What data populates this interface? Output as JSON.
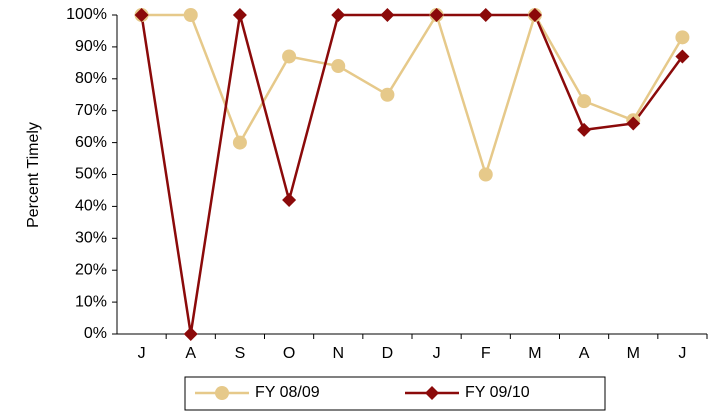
{
  "chart_data": {
    "type": "line",
    "y_label": "Percent Timely",
    "categories": [
      "J",
      "A",
      "S",
      "O",
      "N",
      "D",
      "J",
      "F",
      "M",
      "A",
      "M",
      "J"
    ],
    "series": [
      {
        "name": "FY 08/09",
        "color": "#e6c98a",
        "marker": "circle",
        "values": [
          100,
          100,
          60,
          87,
          84,
          75,
          100,
          50,
          100,
          73,
          67,
          93
        ]
      },
      {
        "name": "FY 09/10",
        "color": "#8b0a0a",
        "marker": "diamond",
        "values": [
          100,
          0,
          100,
          42,
          100,
          100,
          100,
          100,
          100,
          64,
          66,
          87
        ]
      }
    ],
    "ylim": [
      0,
      100
    ],
    "yticks": [
      {
        "value": 0,
        "label": "0%"
      },
      {
        "value": 10,
        "label": "10%"
      },
      {
        "value": 20,
        "label": "20%"
      },
      {
        "value": 30,
        "label": "30%"
      },
      {
        "value": 40,
        "label": "40%"
      },
      {
        "value": 50,
        "label": "50%"
      },
      {
        "value": 60,
        "label": "60%"
      },
      {
        "value": 70,
        "label": "70%"
      },
      {
        "value": 80,
        "label": "80%"
      },
      {
        "value": 90,
        "label": "90%"
      },
      {
        "value": 100,
        "label": "100%"
      }
    ],
    "grid": false
  }
}
